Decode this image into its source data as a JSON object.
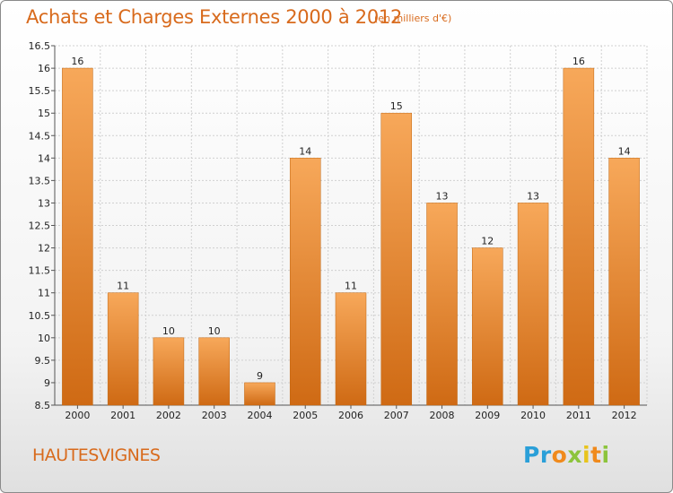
{
  "header": {
    "title": "Achats et Charges Externes 2000 à 2012",
    "unit": "(en milliers d'€)"
  },
  "footer": {
    "place": "HAUTESVIGNES",
    "logo": {
      "p": "Pr",
      "o": "o",
      "x": "x",
      "i": "i",
      "t": "t",
      "i2": "i"
    }
  },
  "colors": {
    "bar_top": "#f7a85a",
    "bar_bottom": "#cf6a14",
    "text_accent": "#d86a1c"
  },
  "chart_data": {
    "type": "bar",
    "title": "Achats et Charges Externes 2000 à 2012",
    "subtitle": "(en milliers d'€)",
    "categories": [
      "2000",
      "2001",
      "2002",
      "2003",
      "2004",
      "2005",
      "2006",
      "2007",
      "2008",
      "2009",
      "2010",
      "2011",
      "2012"
    ],
    "values": [
      16,
      11,
      10,
      10,
      9,
      14,
      11,
      15,
      13,
      12,
      13,
      16,
      14
    ],
    "ylim": [
      8.5,
      16.5
    ],
    "yticks": [
      "8.5",
      "9",
      "9.5",
      "10",
      "10.5",
      "11",
      "11.5",
      "12",
      "12.5",
      "13",
      "13.5",
      "14",
      "14.5",
      "15",
      "15.5",
      "16",
      "16.5"
    ],
    "grid": true,
    "xlabel": "",
    "ylabel": ""
  }
}
